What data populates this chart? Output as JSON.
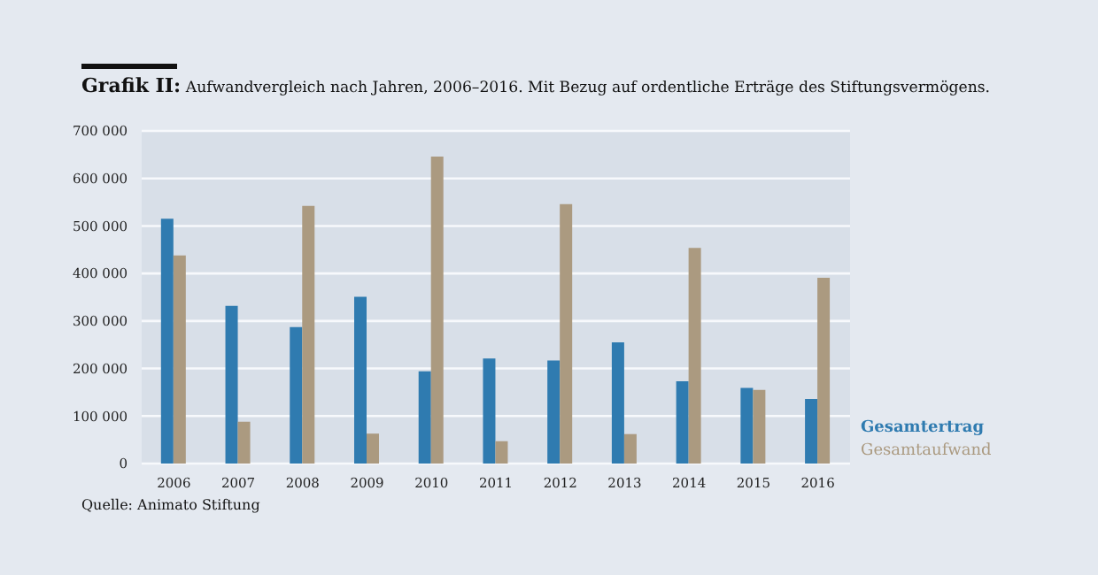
{
  "chart_data": {
    "type": "bar",
    "title": "Grafik II: Aufwandvergleich nach Jahren, 2006–2016. Mit Bezug auf ordentliche Erträge des Stiftungsvermögens.",
    "categories": [
      "2006",
      "2007",
      "2008",
      "2009",
      "2010",
      "2011",
      "2012",
      "2013",
      "2014",
      "2015",
      "2016"
    ],
    "series": [
      {
        "name": "Gesamtertrag",
        "color": "#2f7bb0",
        "values": [
          515000,
          332000,
          287000,
          351000,
          194000,
          221000,
          217000,
          255000,
          173000,
          159000,
          136000
        ]
      },
      {
        "name": "Gesamtaufwand",
        "color": "#ab9a80",
        "values": [
          438000,
          88000,
          542000,
          63000,
          646000,
          47000,
          546000,
          62000,
          454000,
          155000,
          391000
        ]
      }
    ],
    "ylim": [
      0,
      700000
    ],
    "yticks": [
      0,
      {
        "value": 100000,
        "label": "100 000"
      },
      {
        "value": 200000,
        "label": "200 000"
      },
      {
        "value": 300000,
        "label": "300 000"
      },
      {
        "value": 400000,
        "label": "400 000"
      },
      {
        "value": 500000,
        "label": "500 000"
      },
      {
        "value": 600000,
        "label": "600 000"
      },
      {
        "value": 700000,
        "label": "700 000"
      }
    ],
    "grid": "y",
    "legend": "bottom right",
    "annotations": [
      "Quelle: Animato Stiftung"
    ]
  }
}
